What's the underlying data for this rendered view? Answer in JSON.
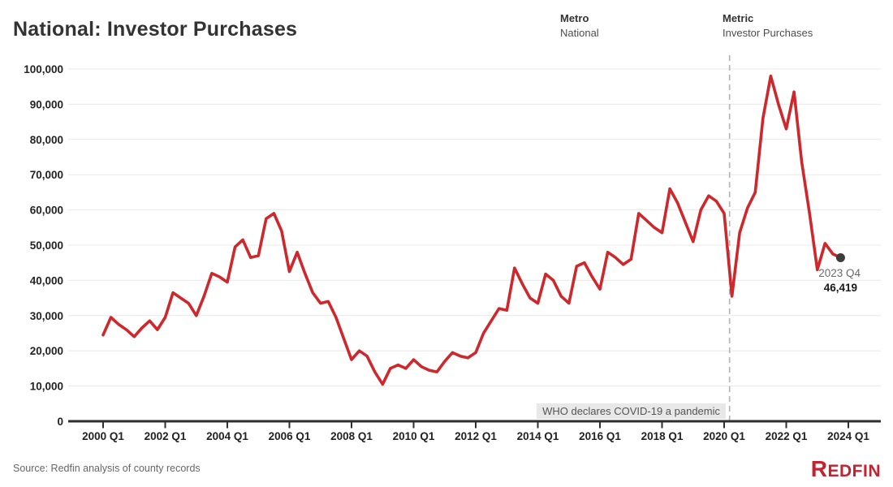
{
  "header": {
    "title": "National: Investor Purchases",
    "metro_label": "Metro",
    "metro_value": "National",
    "metric_label": "Metric",
    "metric_value": "Investor Purchases"
  },
  "annotations": {
    "pandemic_text": "WHO declares COVID-19 a pandemic",
    "endpoint_label": "2023 Q4",
    "endpoint_value": "46,419"
  },
  "footer": {
    "source": "Source: Redfin analysis of county records",
    "logo_text": "REDFIN"
  },
  "colors": {
    "line": "#ce272c",
    "dot": "#3d3d3d",
    "grid": "#e8e8e8",
    "axis": "#2e2e2e",
    "dashed": "#b3b3b3",
    "logo": "#c5212e",
    "annotation_bg": "#e8e8e8"
  },
  "chart_data": {
    "type": "line",
    "title": "National: Investor Purchases",
    "series_name": "Investor Purchases",
    "frequency": "quarterly",
    "x_start": "2000 Q1",
    "x_end": "2023 Q4",
    "values": [
      24500,
      29500,
      27500,
      26000,
      24000,
      26500,
      28500,
      26000,
      29500,
      36500,
      35000,
      33500,
      30000,
      35500,
      42000,
      41000,
      39500,
      49500,
      51500,
      46500,
      47000,
      57500,
      59000,
      54000,
      42500,
      48000,
      42000,
      36500,
      33500,
      34000,
      29500,
      23500,
      17500,
      20000,
      18500,
      14000,
      10500,
      15000,
      16000,
      15000,
      17500,
      15500,
      14500,
      14000,
      17000,
      19500,
      18500,
      18000,
      19500,
      25000,
      28500,
      32000,
      31500,
      43500,
      39000,
      35000,
      33500,
      41800,
      40000,
      35500,
      33500,
      44000,
      45000,
      41000,
      37500,
      48000,
      46500,
      44500,
      46000,
      59000,
      57000,
      55000,
      53500,
      66000,
      62000,
      56500,
      51000,
      60000,
      64000,
      62500,
      59000,
      35500,
      53500,
      60500,
      65000,
      86000,
      98000,
      90000,
      83000,
      93500,
      73500,
      59000,
      43000,
      50500,
      47500,
      46419
    ],
    "x_tick_labels": [
      "2000 Q1",
      "2002 Q1",
      "2004 Q1",
      "2006 Q1",
      "2008 Q1",
      "2010 Q1",
      "2012 Q1",
      "2014 Q1",
      "2016 Q1",
      "2018 Q1",
      "2020 Q1",
      "2022 Q1",
      "2024 Q1"
    ],
    "y_ticks": [
      0,
      10000,
      20000,
      30000,
      40000,
      50000,
      60000,
      70000,
      80000,
      90000,
      100000
    ],
    "ylim": [
      0,
      100000
    ],
    "grid": true,
    "legend": false,
    "pandemic_marker": {
      "label": "WHO declares COVID-19 a pandemic",
      "quarter_index": 80.7
    },
    "endpoint": {
      "label": "2023 Q4",
      "value": 46419
    }
  }
}
